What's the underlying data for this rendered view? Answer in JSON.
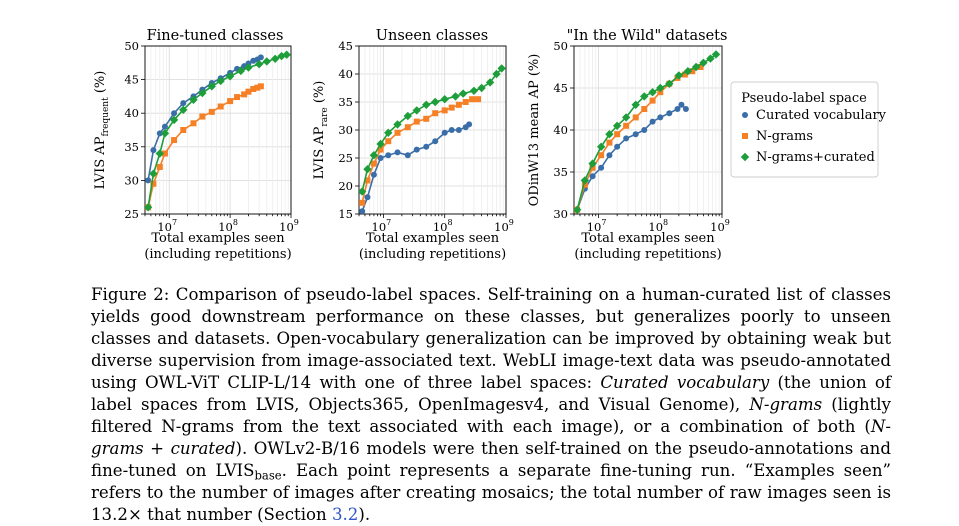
{
  "chart_data": [
    {
      "type": "line",
      "title": "Fine-tuned classes",
      "ylabel_base": "LVIS AP",
      "ylabel_sub": "frequent",
      "ylabel_suffix": " (%)",
      "xlabel_line1": "Total examples seen",
      "xlabel_line2": "(including repetitions)",
      "xscale": "log",
      "xlim": [
        4000000,
        1000000000
      ],
      "ylim": [
        25,
        50
      ],
      "yticks": [
        "25",
        "30",
        "35",
        "40",
        "45",
        "50"
      ],
      "xticks": [
        {
          "base": "10",
          "exp": "7"
        },
        {
          "base": "10",
          "exp": "8"
        },
        {
          "base": "10",
          "exp": "9"
        }
      ],
      "grid": true,
      "series": [
        {
          "name": "Curated vocabulary",
          "x": [
            4500000,
            5500000,
            7000000,
            8500000,
            12000000,
            17000000,
            25000000,
            35000000,
            50000000,
            70000000,
            100000000,
            130000000,
            170000000,
            200000000,
            240000000,
            280000000,
            320000000
          ],
          "y": [
            30,
            34.5,
            37,
            38,
            40,
            41.5,
            42.5,
            43.5,
            44.5,
            45.2,
            46,
            46.6,
            47,
            47.4,
            47.8,
            48,
            48.3
          ]
        },
        {
          "name": "N-grams",
          "x": [
            4500000,
            5500000,
            7000000,
            8500000,
            12000000,
            17000000,
            25000000,
            35000000,
            50000000,
            70000000,
            100000000,
            130000000,
            170000000,
            200000000,
            240000000,
            280000000,
            320000000
          ],
          "y": [
            26,
            29.5,
            32,
            34,
            36,
            37.5,
            38.5,
            39.5,
            40.2,
            41,
            41.8,
            42.4,
            42.8,
            43.2,
            43.6,
            43.8,
            44
          ]
        },
        {
          "name": "N-grams+curated",
          "x": [
            4500000,
            5500000,
            7000000,
            8500000,
            12000000,
            17000000,
            25000000,
            35000000,
            50000000,
            70000000,
            100000000,
            150000000,
            200000000,
            300000000,
            400000000,
            550000000,
            700000000,
            850000000
          ],
          "y": [
            26,
            31,
            34,
            37,
            39,
            40.5,
            42,
            43,
            44,
            44.8,
            45.5,
            46.3,
            46.8,
            47.3,
            47.7,
            48.1,
            48.5,
            48.7
          ]
        }
      ]
    },
    {
      "type": "line",
      "title": "Unseen classes",
      "ylabel_base": "LVIS AP",
      "ylabel_sub": "rare",
      "ylabel_suffix": " (%)",
      "xlabel_line1": "Total examples seen",
      "xlabel_line2": "(including repetitions)",
      "xscale": "log",
      "xlim": [
        4000000,
        1000000000
      ],
      "ylim": [
        15,
        45
      ],
      "yticks": [
        "15",
        "20",
        "25",
        "30",
        "35",
        "40",
        "45"
      ],
      "xticks": [
        {
          "base": "10",
          "exp": "7"
        },
        {
          "base": "10",
          "exp": "8"
        },
        {
          "base": "10",
          "exp": "9"
        }
      ],
      "grid": true,
      "series": [
        {
          "name": "Curated vocabulary",
          "x": [
            4500000,
            5500000,
            7000000,
            9000000,
            12000000,
            17000000,
            25000000,
            35000000,
            50000000,
            70000000,
            100000000,
            130000000,
            170000000,
            220000000,
            250000000
          ],
          "y": [
            15.5,
            18,
            22,
            25,
            25.5,
            26,
            25.5,
            26.5,
            27,
            28,
            29.5,
            30,
            30,
            30.5,
            31
          ]
        },
        {
          "name": "N-grams",
          "x": [
            4500000,
            5500000,
            7000000,
            9000000,
            12000000,
            17000000,
            25000000,
            35000000,
            50000000,
            70000000,
            100000000,
            130000000,
            170000000,
            220000000,
            280000000,
            350000000
          ],
          "y": [
            17,
            21,
            24,
            26.5,
            28,
            29.5,
            30.5,
            31.5,
            32,
            33,
            33.5,
            34,
            34.5,
            35,
            35.5,
            35.5
          ]
        },
        {
          "name": "N-grams+curated",
          "x": [
            4500000,
            5500000,
            7000000,
            9000000,
            12000000,
            17000000,
            25000000,
            35000000,
            50000000,
            70000000,
            100000000,
            150000000,
            200000000,
            300000000,
            400000000,
            550000000,
            700000000,
            850000000
          ],
          "y": [
            19,
            23,
            25.5,
            27.5,
            29.5,
            31,
            32.5,
            33.5,
            34.5,
            35,
            35.5,
            36,
            36.5,
            37,
            37.5,
            38.5,
            40,
            41
          ]
        }
      ]
    },
    {
      "type": "line",
      "title": "\"In the Wild\" datasets",
      "ylabel_base": "ODinW13 mean AP (%)",
      "ylabel_sub": "",
      "ylabel_suffix": "",
      "xlabel_line1": "Total examples seen",
      "xlabel_line2": "(including repetitions)",
      "xscale": "log",
      "xlim": [
        4000000,
        1000000000
      ],
      "ylim": [
        30,
        50
      ],
      "yticks": [
        "30",
        "35",
        "40",
        "45",
        "50"
      ],
      "xticks": [
        {
          "base": "10",
          "exp": "7"
        },
        {
          "base": "10",
          "exp": "8"
        },
        {
          "base": "10",
          "exp": "9"
        }
      ],
      "grid": true,
      "series": [
        {
          "name": "Curated vocabulary",
          "x": [
            4500000,
            6000000,
            8000000,
            11000000,
            15000000,
            20000000,
            28000000,
            40000000,
            55000000,
            75000000,
            100000000,
            140000000,
            190000000,
            220000000,
            260000000
          ],
          "y": [
            30.5,
            33,
            34.5,
            35.5,
            37,
            38,
            39,
            39.5,
            40,
            41,
            41.5,
            42,
            42.5,
            43,
            42.5
          ]
        },
        {
          "name": "N-grams",
          "x": [
            4500000,
            6000000,
            8000000,
            11000000,
            15000000,
            20000000,
            28000000,
            40000000,
            55000000,
            75000000,
            100000000,
            140000000,
            190000000,
            250000000,
            330000000,
            450000000
          ],
          "y": [
            30.5,
            33.5,
            35.5,
            37,
            38.5,
            39.5,
            40.5,
            41.5,
            42.5,
            43.5,
            44.5,
            45.5,
            46.2,
            46.6,
            47,
            47.5
          ]
        },
        {
          "name": "N-grams+curated",
          "x": [
            4500000,
            6000000,
            8000000,
            11000000,
            15000000,
            20000000,
            28000000,
            40000000,
            55000000,
            75000000,
            100000000,
            140000000,
            200000000,
            280000000,
            380000000,
            500000000,
            650000000,
            800000000
          ],
          "y": [
            30.5,
            34,
            36,
            38,
            39.5,
            40.5,
            41.5,
            43,
            44,
            44.5,
            45,
            45.5,
            46.5,
            47,
            47.5,
            48,
            48.5,
            49
          ]
        }
      ]
    }
  ],
  "legend": {
    "title": "Pseudo-label space",
    "items": [
      {
        "label": "Curated vocabulary",
        "color": "#3a6ea8",
        "marker": "circle"
      },
      {
        "label": "N-grams",
        "color": "#f58025",
        "marker": "square"
      },
      {
        "label": "N-grams+curated",
        "color": "#1e9e3a",
        "marker": "diamond"
      }
    ]
  },
  "caption": {
    "figure_label": "Figure 2:",
    "text_1": " Comparison of pseudo-label spaces. Self-training on a human-curated list of classes yields good downstream performance on these classes, but generalizes poorly to unseen classes and datasets. Open-vocabulary generalization can be improved by obtaining weak but diverse supervision from image-associated text. WebLI image-text data was pseudo-annotated using OWL-ViT CLIP-L/14 with one of three label spaces: ",
    "em_1": "Curated vocabulary",
    "text_2": " (the union of label spaces from LVIS, Objects365, OpenImagesv4, and Visual Genome), ",
    "em_2": "N-grams",
    "text_3": " (lightly filtered N-grams from the text associated with each image), or a combination of both (",
    "em_3": "N-grams + curated",
    "text_4": "). OWLv2-B/16 models were then self-trained on the pseudo-annotations and fine-tuned on LVIS",
    "sub_1": "base",
    "text_5": ". Each point represents a separate fine-tuning run. “Examples seen” refers to the number of images after creating mosaics; the total number of raw images seen is 13.2× that number (Section ",
    "ref_1": "3.2",
    "text_6": ")."
  }
}
